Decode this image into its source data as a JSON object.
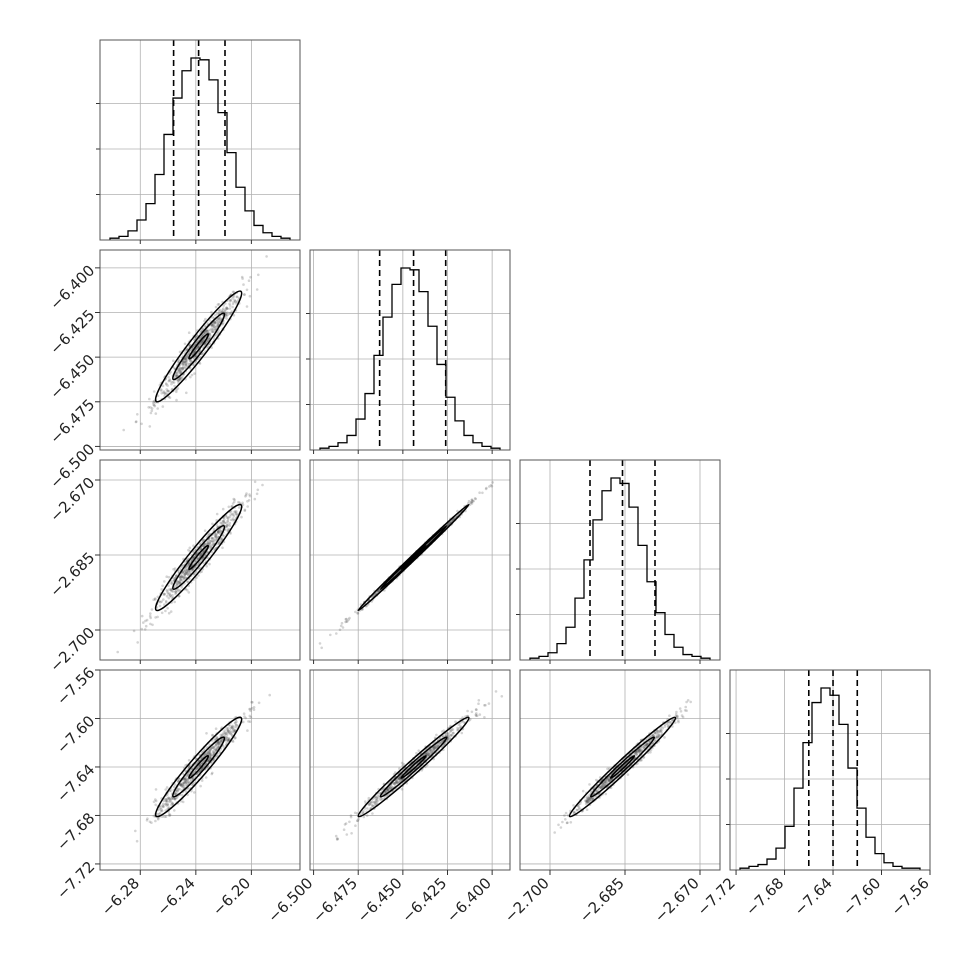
{
  "chart_data": {
    "type": "corner",
    "parameters": [
      {
        "index": 0,
        "mean": -6.238,
        "std": 0.0155,
        "range": [
          -6.309,
          -6.165
        ],
        "ticks": [
          -6.28,
          -6.24,
          -6.2
        ],
        "tick_labels": [
          "−6.28",
          "−6.24",
          "−6.20"
        ]
      },
      {
        "index": 1,
        "mean": -6.444,
        "std": 0.0155,
        "range": [
          -6.502,
          -6.39
        ],
        "ticks": [
          -6.5,
          -6.475,
          -6.45,
          -6.425,
          -6.4
        ],
        "tick_labels": [
          "−6.500",
          "−6.475",
          "−6.450",
          "−6.425",
          "−6.400"
        ]
      },
      {
        "index": 2,
        "mean": -2.6855,
        "std": 0.0053,
        "range": [
          -2.706,
          -2.666
        ],
        "ticks": [
          -2.7,
          -2.685,
          -2.67
        ],
        "tick_labels": [
          "−2.700",
          "−2.685",
          "−2.670"
        ]
      },
      {
        "index": 3,
        "mean": -7.64,
        "std": 0.0205,
        "range": [
          -7.725,
          -7.56
        ],
        "ticks": [
          -7.72,
          -7.68,
          -7.64,
          -7.6,
          -7.56
        ],
        "tick_labels": [
          "−7.72",
          "−7.68",
          "−7.64",
          "−7.60",
          "−7.56"
        ]
      }
    ],
    "quantiles": [
      0.16,
      0.5,
      0.84
    ],
    "quantile_values": [
      [
        -6.256,
        -6.238,
        -6.219
      ],
      [
        -6.463,
        -6.444,
        -6.426
      ],
      [
        -2.692,
        -2.6855,
        -2.679
      ],
      [
        -7.66,
        -7.64,
        -7.62
      ]
    ],
    "histograms": [
      {
        "bin_counts": [
          1,
          2,
          5,
          11,
          20,
          36,
          58,
          78,
          93,
          100,
          99,
          88,
          70,
          48,
          29,
          16,
          8,
          4,
          2,
          1
        ]
      },
      {
        "bin_counts": [
          1,
          2,
          4,
          8,
          17,
          31,
          52,
          73,
          91,
          100,
          99,
          87,
          68,
          47,
          29,
          16,
          8,
          4,
          2,
          1
        ]
      },
      {
        "bin_counts": [
          1,
          2,
          4,
          9,
          18,
          34,
          55,
          77,
          93,
          100,
          97,
          84,
          63,
          43,
          26,
          14,
          7,
          3,
          2,
          1
        ]
      },
      {
        "bin_counts": [
          1,
          2,
          3,
          6,
          12,
          24,
          45,
          70,
          92,
          100,
          96,
          80,
          56,
          34,
          18,
          9,
          4,
          2,
          1,
          1
        ]
      }
    ],
    "correlations": {
      "1_0": 0.96,
      "2_0": 0.96,
      "2_1": 0.998,
      "3_0": 0.96,
      "3_1": 0.985,
      "3_2": 0.985
    },
    "grid": true,
    "colors": {
      "hist": "#000000",
      "points": "#555555",
      "contour": "#000000"
    }
  }
}
